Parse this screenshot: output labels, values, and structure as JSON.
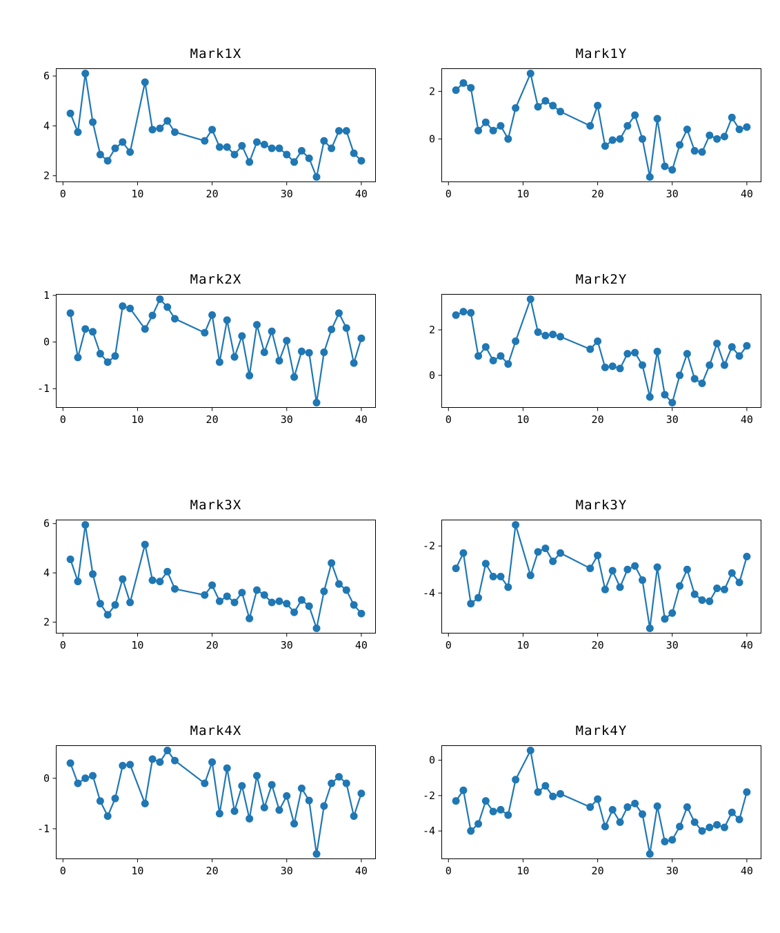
{
  "figure": {
    "background": "#ffffff",
    "line_color": "#1f77b4",
    "axis_color": "#000000"
  },
  "chart_data": [
    {
      "type": "line",
      "title": "Mark1X",
      "xlabel": "",
      "ylabel": "",
      "grid": false,
      "legend": "none",
      "marker": "circle",
      "color": "#1f77b4",
      "xlim": [
        -0.95,
        41.95
      ],
      "ylim": [
        1.742,
        6.308
      ],
      "xticks": [
        0,
        10,
        20,
        30,
        40
      ],
      "yticks": [
        2,
        4,
        6
      ],
      "x": [
        1,
        2,
        3,
        4,
        5,
        6,
        7,
        8,
        9,
        11,
        12,
        13,
        14,
        15,
        19,
        20,
        21,
        22,
        23,
        24,
        25,
        26,
        27,
        28,
        29,
        30,
        31,
        32,
        33,
        34,
        35,
        36,
        37,
        38,
        39,
        40
      ],
      "y": [
        4.5,
        3.75,
        6.1,
        4.15,
        2.85,
        2.6,
        3.1,
        3.35,
        2.95,
        5.75,
        3.85,
        3.9,
        4.2,
        3.75,
        3.4,
        3.85,
        3.15,
        3.15,
        2.85,
        3.2,
        2.55,
        3.35,
        3.25,
        3.1,
        3.1,
        2.85,
        2.55,
        3.0,
        2.7,
        1.95,
        3.4,
        3.1,
        3.8,
        3.8,
        2.9,
        2.6
      ]
    },
    {
      "type": "line",
      "title": "Mark1Y",
      "xlabel": "",
      "ylabel": "",
      "grid": false,
      "legend": "none",
      "marker": "circle",
      "color": "#1f77b4",
      "xlim": [
        -0.95,
        41.95
      ],
      "ylim": [
        -1.818,
        2.968
      ],
      "xticks": [
        0,
        10,
        20,
        30,
        40
      ],
      "yticks": [
        0,
        2
      ],
      "x": [
        1,
        2,
        3,
        4,
        5,
        6,
        7,
        8,
        9,
        11,
        12,
        13,
        14,
        15,
        19,
        20,
        21,
        22,
        23,
        24,
        25,
        26,
        27,
        28,
        29,
        30,
        31,
        32,
        33,
        34,
        35,
        36,
        37,
        38,
        39,
        40
      ],
      "y": [
        2.05,
        2.35,
        2.15,
        0.35,
        0.7,
        0.35,
        0.55,
        0.0,
        1.3,
        2.75,
        1.35,
        1.6,
        1.4,
        1.15,
        0.55,
        1.4,
        -0.3,
        -0.05,
        0.0,
        0.55,
        1.0,
        0.0,
        -1.6,
        0.85,
        -1.15,
        -1.3,
        -0.25,
        0.4,
        -0.5,
        -0.55,
        0.15,
        0.0,
        0.1,
        0.9,
        0.4,
        0.5
      ]
    },
    {
      "type": "line",
      "title": "Mark2X",
      "xlabel": "",
      "ylabel": "",
      "grid": false,
      "legend": "none",
      "marker": "circle",
      "color": "#1f77b4",
      "xlim": [
        -0.95,
        41.95
      ],
      "ylim": [
        -1.411,
        1.031
      ],
      "xticks": [
        0,
        10,
        20,
        30,
        40
      ],
      "yticks": [
        -1,
        0,
        1
      ],
      "x": [
        1,
        2,
        3,
        4,
        5,
        6,
        7,
        8,
        9,
        11,
        12,
        13,
        14,
        15,
        19,
        20,
        21,
        22,
        23,
        24,
        25,
        26,
        27,
        28,
        29,
        30,
        31,
        32,
        33,
        34,
        35,
        36,
        37,
        38,
        39,
        40
      ],
      "y": [
        0.62,
        -0.33,
        0.28,
        0.22,
        -0.25,
        -0.43,
        -0.3,
        0.77,
        0.72,
        0.28,
        0.57,
        0.92,
        0.75,
        0.5,
        0.2,
        0.58,
        -0.43,
        0.47,
        -0.32,
        0.13,
        -0.72,
        0.37,
        -0.22,
        0.23,
        -0.4,
        0.03,
        -0.75,
        -0.2,
        -0.23,
        -1.3,
        -0.22,
        0.27,
        0.62,
        0.3,
        -0.45,
        0.08
      ]
    },
    {
      "type": "line",
      "title": "Mark2Y",
      "xlabel": "",
      "ylabel": "",
      "grid": false,
      "legend": "none",
      "marker": "circle",
      "color": "#1f77b4",
      "xlim": [
        -0.95,
        41.95
      ],
      "ylim": [
        -1.428,
        3.578
      ],
      "xticks": [
        0,
        10,
        20,
        30,
        40
      ],
      "yticks": [
        0,
        2
      ],
      "x": [
        1,
        2,
        3,
        4,
        5,
        6,
        7,
        8,
        9,
        11,
        12,
        13,
        14,
        15,
        19,
        20,
        21,
        22,
        23,
        24,
        25,
        26,
        27,
        28,
        29,
        30,
        31,
        32,
        33,
        34,
        35,
        36,
        37,
        38,
        39,
        40
      ],
      "y": [
        2.65,
        2.8,
        2.75,
        0.85,
        1.25,
        0.65,
        0.85,
        0.5,
        1.5,
        3.35,
        1.9,
        1.75,
        1.8,
        1.7,
        1.15,
        1.5,
        0.35,
        0.4,
        0.3,
        0.95,
        1.0,
        0.45,
        -0.95,
        1.05,
        -0.85,
        -1.2,
        0.0,
        0.95,
        -0.15,
        -0.35,
        0.45,
        1.4,
        0.45,
        1.25,
        0.85,
        1.3
      ]
    },
    {
      "type": "line",
      "title": "Mark3X",
      "xlabel": "",
      "ylabel": "",
      "grid": false,
      "legend": "none",
      "marker": "circle",
      "color": "#1f77b4",
      "xlim": [
        -0.95,
        41.95
      ],
      "ylim": [
        1.54,
        6.16
      ],
      "xticks": [
        0,
        10,
        20,
        30,
        40
      ],
      "yticks": [
        2,
        4,
        6
      ],
      "x": [
        1,
        2,
        3,
        4,
        5,
        6,
        7,
        8,
        9,
        11,
        12,
        13,
        14,
        15,
        19,
        20,
        21,
        22,
        23,
        24,
        25,
        26,
        27,
        28,
        29,
        30,
        31,
        32,
        33,
        34,
        35,
        36,
        37,
        38,
        39,
        40
      ],
      "y": [
        4.55,
        3.65,
        5.95,
        3.95,
        2.75,
        2.3,
        2.7,
        3.75,
        2.8,
        5.15,
        3.7,
        3.65,
        4.05,
        3.35,
        3.1,
        3.5,
        2.85,
        3.05,
        2.8,
        3.2,
        2.15,
        3.3,
        3.1,
        2.8,
        2.85,
        2.75,
        2.4,
        2.9,
        2.65,
        1.75,
        3.25,
        4.4,
        3.55,
        3.3,
        2.7,
        2.35
      ]
    },
    {
      "type": "line",
      "title": "Mark3Y",
      "xlabel": "",
      "ylabel": "",
      "grid": false,
      "legend": "none",
      "marker": "circle",
      "color": "#1f77b4",
      "xlim": [
        -0.95,
        41.95
      ],
      "ylim": [
        -5.72,
        -0.88
      ],
      "xticks": [
        0,
        10,
        20,
        30,
        40
      ],
      "yticks": [
        -4,
        -2
      ],
      "x": [
        1,
        2,
        3,
        4,
        5,
        6,
        7,
        8,
        9,
        11,
        12,
        13,
        14,
        15,
        19,
        20,
        21,
        22,
        23,
        24,
        25,
        26,
        27,
        28,
        29,
        30,
        31,
        32,
        33,
        34,
        35,
        36,
        37,
        38,
        39,
        40
      ],
      "y": [
        -2.95,
        -2.3,
        -4.45,
        -4.2,
        -2.75,
        -3.3,
        -3.3,
        -3.75,
        -1.1,
        -3.25,
        -2.25,
        -2.1,
        -2.65,
        -2.3,
        -2.95,
        -2.4,
        -3.85,
        -3.05,
        -3.75,
        -3.0,
        -2.85,
        -3.45,
        -5.5,
        -2.9,
        -5.1,
        -4.85,
        -3.7,
        -3.0,
        -4.05,
        -4.3,
        -4.35,
        -3.8,
        -3.85,
        -3.15,
        -3.55,
        -2.45
      ]
    },
    {
      "type": "line",
      "title": "Mark4X",
      "xlabel": "",
      "ylabel": "",
      "grid": false,
      "legend": "none",
      "marker": "circle",
      "color": "#1f77b4",
      "xlim": [
        -0.95,
        41.95
      ],
      "ylim": [
        -1.602,
        0.653
      ],
      "xticks": [
        0,
        10,
        20,
        30,
        40
      ],
      "yticks": [
        -1,
        0
      ],
      "x": [
        1,
        2,
        3,
        4,
        5,
        6,
        7,
        8,
        9,
        11,
        12,
        13,
        14,
        15,
        19,
        20,
        21,
        22,
        23,
        24,
        25,
        26,
        27,
        28,
        29,
        30,
        31,
        32,
        33,
        34,
        35,
        36,
        37,
        38,
        39,
        40
      ],
      "y": [
        0.3,
        -0.1,
        0.0,
        0.05,
        -0.45,
        -0.75,
        -0.4,
        0.25,
        0.27,
        -0.5,
        0.38,
        0.32,
        0.55,
        0.35,
        -0.1,
        0.32,
        -0.7,
        0.2,
        -0.65,
        -0.15,
        -0.8,
        0.05,
        -0.58,
        -0.13,
        -0.63,
        -0.35,
        -0.9,
        -0.2,
        -0.44,
        -1.5,
        -0.55,
        -0.1,
        0.03,
        -0.1,
        -0.75,
        -0.3
      ]
    },
    {
      "type": "line",
      "title": "Mark4Y",
      "xlabel": "",
      "ylabel": "",
      "grid": false,
      "legend": "none",
      "marker": "circle",
      "color": "#1f77b4",
      "xlim": [
        -0.95,
        41.95
      ],
      "ylim": [
        -5.593,
        0.843
      ],
      "xticks": [
        0,
        10,
        20,
        30,
        40
      ],
      "yticks": [
        -4,
        -2,
        0
      ],
      "x": [
        1,
        2,
        3,
        4,
        5,
        6,
        7,
        8,
        9,
        11,
        12,
        13,
        14,
        15,
        19,
        20,
        21,
        22,
        23,
        24,
        25,
        26,
        27,
        28,
        29,
        30,
        31,
        32,
        33,
        34,
        35,
        36,
        37,
        38,
        39,
        40
      ],
      "y": [
        -2.3,
        -1.7,
        -4.0,
        -3.6,
        -2.3,
        -2.9,
        -2.8,
        -3.1,
        -1.1,
        0.55,
        -1.8,
        -1.45,
        -2.05,
        -1.9,
        -2.65,
        -2.2,
        -3.75,
        -2.8,
        -3.5,
        -2.65,
        -2.45,
        -3.05,
        -5.3,
        -2.6,
        -4.6,
        -4.5,
        -3.75,
        -2.65,
        -3.5,
        -4.0,
        -3.8,
        -3.65,
        -3.8,
        -2.95,
        -3.35,
        -1.8
      ]
    }
  ]
}
